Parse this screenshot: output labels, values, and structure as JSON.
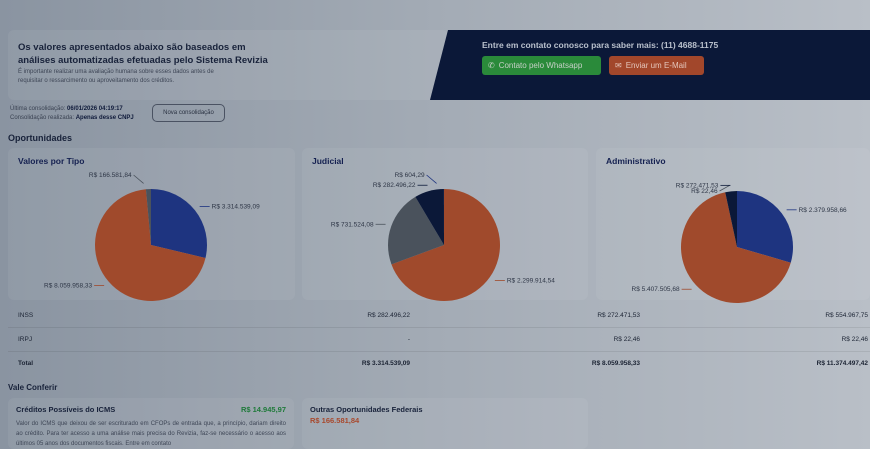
{
  "notice": {
    "title": "Os valores apresentados abaixo são baseados em análises automatizadas efetuadas pelo Sistema Revizia",
    "text": "É importante realizar uma avaliação humana sobre esses dados antes de requisitar o ressarcimento ou aproveitamento dos créditos."
  },
  "contact": {
    "text": "Entre em contato conosco para saber mais: (11) 4688-1175",
    "whatsapp_label": "Contato pelo Whatsapp",
    "email_label": "Enviar um E-Mail",
    "whatsapp_color": "#2a8a3a",
    "email_color": "#a2472b"
  },
  "meta": {
    "last_label": "Última consolidação:",
    "last_value": "06/01/2026 04:19:17",
    "scope_label": "Consolidação realizada:",
    "scope_value": "Apenas desse CNPJ",
    "nova_label": "Nova consolidação"
  },
  "opportunities_title": "Oportunidades",
  "chart_data": [
    {
      "type": "pie",
      "title": "Valores por Tipo",
      "slices": [
        {
          "value": 3314539.09,
          "label": "R$ 3.314.539,09",
          "color": "#1e3480"
        },
        {
          "value": 8059958.33,
          "label": "R$ 8.059.958,33",
          "color": "#a04a2c"
        },
        {
          "value": 166581.84,
          "label": "R$ 166.581,84",
          "color": "#4a525c"
        }
      ]
    },
    {
      "type": "pie",
      "title": "Judicial",
      "slices": [
        {
          "value": 2299914.54,
          "label": "R$ 2.299.914,54",
          "color": "#a04a2c"
        },
        {
          "value": 731524.08,
          "label": "R$ 731.524,08",
          "color": "#4a525c"
        },
        {
          "value": 282496.22,
          "label": "R$ 282.496,22",
          "color": "#0b1838"
        },
        {
          "value": 604.29,
          "label": "R$ 604,29",
          "color": "#1e3480"
        }
      ]
    },
    {
      "type": "pie",
      "title": "Administrativo",
      "slices": [
        {
          "value": 2379958.66,
          "label": "R$ 2.379.958,66",
          "color": "#1e3480"
        },
        {
          "value": 5407505.68,
          "label": "R$ 5.407.505,68",
          "color": "#a04a2c"
        },
        {
          "value": 22.46,
          "label": "R$ 22,46",
          "color": "#4a525c"
        },
        {
          "value": 272471.53,
          "label": "R$ 272.471,53",
          "color": "#0b1838"
        }
      ]
    }
  ],
  "table": {
    "rows": [
      {
        "label": "INSS",
        "c1": "R$ 282.496,22",
        "c2": "R$ 272.471,53",
        "c3": "R$ 554.967,75"
      },
      {
        "label": "IRPJ",
        "c1": "-",
        "c2": "R$ 22,46",
        "c3": "R$ 22,46"
      },
      {
        "label": "Total",
        "c1": "R$ 3.314.539,09",
        "c2": "R$ 8.059.958,33",
        "c3": "R$ 11.374.497,42"
      }
    ]
  },
  "vale": {
    "title": "Vale Conferir",
    "icms": {
      "title": "Créditos Possíveis do ICMS",
      "value": "R$ 14.945,97",
      "text": "Valor do ICMS que deixou de ser escriturado em CFOPs de entrada que, a princípio, dariam direito ao crédito. Para ter acesso a uma análise mais precisa do Revizia, faz-se necessário o acesso aos últimos 05 anos dos documentos fiscais. Entre em contato"
    },
    "federal": {
      "title": "Outras Oportunidades Federais",
      "value": "R$ 166.581,84"
    }
  }
}
